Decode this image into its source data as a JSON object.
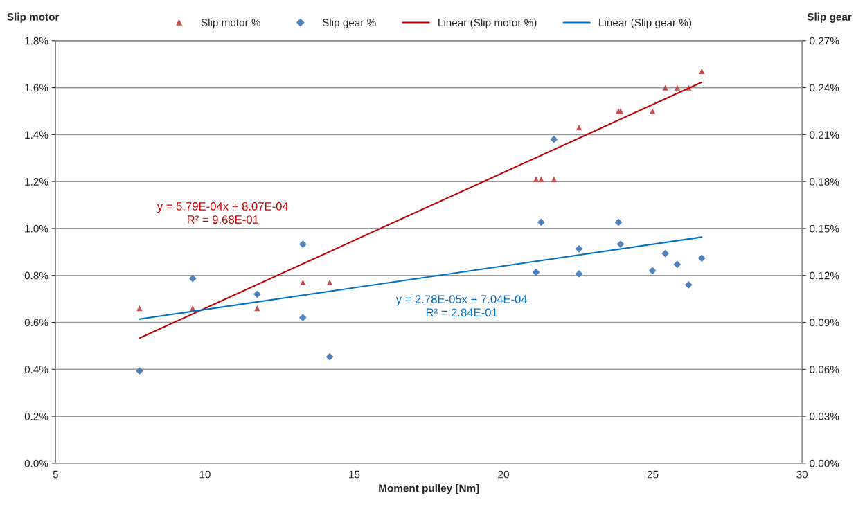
{
  "chart_data": {
    "type": "scatter",
    "xlabel": "Moment pulley [Nm]",
    "ylabel": "Slip motor",
    "y2label": "Slip gear",
    "xlim": [
      5,
      30
    ],
    "xticks": [
      5,
      10,
      15,
      20,
      25,
      30
    ],
    "ylim": [
      0,
      1.8
    ],
    "yticks": [
      {
        "value": 0,
        "label": "0.0%"
      },
      {
        "value": 0.2,
        "label": "0.2%"
      },
      {
        "value": 0.4,
        "label": "0.4%"
      },
      {
        "value": 0.6,
        "label": "0.6%"
      },
      {
        "value": 0.8,
        "label": "0.8%"
      },
      {
        "value": 1.0,
        "label": "1.0%"
      },
      {
        "value": 1.2,
        "label": "1.2%"
      },
      {
        "value": 1.4,
        "label": "1.4%"
      },
      {
        "value": 1.6,
        "label": "1.6%"
      },
      {
        "value": 1.8,
        "label": "1.8%"
      }
    ],
    "y2lim": [
      0,
      0.27
    ],
    "y2ticks": [
      {
        "value": 0,
        "label": "0.00%"
      },
      {
        "value": 0.03,
        "label": "0.03%"
      },
      {
        "value": 0.06,
        "label": "0.06%"
      },
      {
        "value": 0.09,
        "label": "0.09%"
      },
      {
        "value": 0.12,
        "label": "0.12%"
      },
      {
        "value": 0.15,
        "label": "0.15%"
      },
      {
        "value": 0.18,
        "label": "0.18%"
      },
      {
        "value": 0.21,
        "label": "0.21%"
      },
      {
        "value": 0.24,
        "label": "0.24%"
      },
      {
        "value": 0.27,
        "label": "0.27%"
      }
    ],
    "grid": "y",
    "legend": "top",
    "series": [
      {
        "name": "Slip motor %",
        "marker": "triangle",
        "color": "#c0504d",
        "x": [
          7.81,
          9.59,
          11.75,
          13.28,
          14.18,
          21.09,
          21.26,
          21.69,
          22.53,
          23.85,
          23.92,
          24.99,
          25.42,
          25.82,
          26.2,
          26.64
        ],
        "values": [
          0.66,
          0.66,
          0.66,
          0.77,
          0.77,
          1.21,
          1.21,
          1.21,
          1.43,
          1.5,
          1.5,
          1.5,
          1.6,
          1.6,
          1.6,
          1.67
        ]
      },
      {
        "name": "Slip gear %",
        "marker": "diamond",
        "color": "#4f81bd",
        "axis": "y2",
        "x": [
          7.81,
          9.59,
          11.75,
          13.28,
          13.28,
          14.18,
          21.09,
          21.26,
          21.69,
          22.53,
          22.53,
          23.85,
          23.92,
          24.99,
          25.42,
          25.82,
          26.2,
          26.64
        ],
        "values": [
          0.059,
          0.118,
          0.108,
          0.14,
          0.093,
          0.068,
          0.122,
          0.154,
          0.207,
          0.137,
          0.121,
          0.154,
          0.14,
          0.123,
          0.134,
          0.127,
          0.114,
          0.131
        ]
      },
      {
        "name": "Linear (Slip motor %)",
        "type": "line",
        "marker": "none",
        "color": "#c00000",
        "x": [
          7.81,
          26.64
        ],
        "values": [
          0.533,
          1.623
        ]
      },
      {
        "name": "Linear (Slip gear %)",
        "type": "line",
        "marker": "none",
        "color": "#0070c0",
        "axis": "y2",
        "x": [
          7.81,
          26.64
        ],
        "values": [
          0.0921,
          0.1445
        ]
      }
    ],
    "annotations": [
      "y = 5.79E-04x + 8.07E-04\nR² = 9.68E-01",
      "y = 2.78E-05x + 7.04E-04\nR² = 2.84E-01"
    ]
  }
}
